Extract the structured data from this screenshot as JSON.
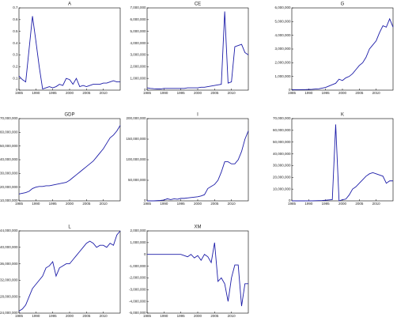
{
  "chart_data": [
    {
      "type": "line",
      "title": "A",
      "x": [
        1985,
        1986,
        1987,
        1988,
        1989,
        1990,
        1991,
        1992,
        1993,
        1994,
        1995,
        1996,
        1997,
        1998,
        1999,
        2000,
        2001,
        2002,
        2003,
        2004,
        2005,
        2006,
        2007,
        2008,
        2009,
        2010,
        2011,
        2012,
        2013,
        2014,
        2015
      ],
      "series": [
        {
          "color": "#1c1ca8",
          "values": [
            0.12,
            0.09,
            0.07,
            0.35,
            0.63,
            0.42,
            0.2,
            0.01,
            0.02,
            0.03,
            0.02,
            0.03,
            0.05,
            0.04,
            0.1,
            0.09,
            0.05,
            0.1,
            0.03,
            0.04,
            0.03,
            0.04,
            0.05,
            0.05,
            0.05,
            0.06,
            0.06,
            0.07,
            0.08,
            0.07,
            0.07
          ]
        }
      ],
      "xlim": [
        1985,
        2015
      ],
      "xticks": [
        1985,
        1990,
        1995,
        2000,
        2005,
        2010
      ],
      "ylim": [
        0,
        0.7
      ],
      "yticks": [
        0,
        0.1,
        0.2,
        0.3,
        0.4,
        0.5,
        0.6,
        0.7
      ]
    },
    {
      "type": "line",
      "title": "CE",
      "x": [
        1985,
        1986,
        1987,
        1988,
        1989,
        1990,
        1991,
        1992,
        1993,
        1994,
        1995,
        1996,
        1997,
        1998,
        1999,
        2000,
        2001,
        2002,
        2003,
        2004,
        2005,
        2006,
        2007,
        2008,
        2009,
        2010,
        2011,
        2012,
        2013,
        2014,
        2015
      ],
      "series": [
        {
          "color": "#1c1ca8",
          "values": [
            200000,
            150000,
            120000,
            100000,
            100000,
            150000,
            150000,
            150000,
            150000,
            150000,
            150000,
            150000,
            200000,
            200000,
            200000,
            200000,
            250000,
            250000,
            300000,
            350000,
            400000,
            450000,
            500000,
            6700000,
            600000,
            700000,
            3700000,
            3800000,
            3900000,
            3200000,
            3000000
          ]
        }
      ],
      "xlim": [
        1985,
        2015
      ],
      "xticks": [
        1985,
        1990,
        1995,
        2000,
        2005,
        2010
      ],
      "ylim": [
        0,
        7000000
      ],
      "yticks": [
        0,
        {
          "value": 1000000,
          "label": "1,000,000"
        },
        {
          "value": 2000000,
          "label": "2,000,000"
        },
        {
          "value": 3000000,
          "label": "3,000,000"
        },
        {
          "value": 4000000,
          "label": "4,000,000"
        },
        {
          "value": 5000000,
          "label": "5,000,000"
        },
        {
          "value": 6000000,
          "label": "6,000,000"
        },
        {
          "value": 7000000,
          "label": "7,000,000"
        }
      ]
    },
    {
      "type": "line",
      "title": "G",
      "x": [
        1985,
        1986,
        1987,
        1988,
        1989,
        1990,
        1991,
        1992,
        1993,
        1994,
        1995,
        1996,
        1997,
        1998,
        1999,
        2000,
        2001,
        2002,
        2003,
        2004,
        2005,
        2006,
        2007,
        2008,
        2009,
        2010,
        2011,
        2012,
        2013,
        2014,
        2015
      ],
      "series": [
        {
          "color": "#1c1ca8",
          "values": [
            30000,
            30000,
            30000,
            40000,
            40000,
            50000,
            60000,
            80000,
            100000,
            150000,
            200000,
            300000,
            400000,
            500000,
            800000,
            700000,
            900000,
            1000000,
            1200000,
            1500000,
            1800000,
            2000000,
            2400000,
            3000000,
            3300000,
            3600000,
            4200000,
            4700000,
            4600000,
            5200000,
            4600000
          ]
        }
      ],
      "xlim": [
        1985,
        2015
      ],
      "xticks": [
        1985,
        1990,
        1995,
        2000,
        2005,
        2010
      ],
      "ylim": [
        0,
        6000000
      ],
      "yticks": [
        0,
        {
          "value": 1000000,
          "label": "1,000,000"
        },
        {
          "value": 2000000,
          "label": "2,000,000"
        },
        {
          "value": 3000000,
          "label": "3,000,000"
        },
        {
          "value": 4000000,
          "label": "4,000,000"
        },
        {
          "value": 5000000,
          "label": "5,000,000"
        },
        {
          "value": 6000000,
          "label": "6,000,000"
        }
      ]
    },
    {
      "type": "line",
      "title": "GDP",
      "x": [
        1985,
        1986,
        1987,
        1988,
        1989,
        1990,
        1991,
        1992,
        1993,
        1994,
        1995,
        1996,
        1997,
        1998,
        1999,
        2000,
        2001,
        2002,
        2003,
        2004,
        2005,
        2006,
        2007,
        2008,
        2009,
        2010,
        2011,
        2012,
        2013,
        2014,
        2015
      ],
      "series": [
        {
          "color": "#1c1ca8",
          "values": [
            15000000,
            15500000,
            16000000,
            17000000,
            19000000,
            20000000,
            20500000,
            20500000,
            21000000,
            21000000,
            21500000,
            22000000,
            22500000,
            23000000,
            23500000,
            25000000,
            27000000,
            29000000,
            31000000,
            33000000,
            35000000,
            37000000,
            39000000,
            42000000,
            45000000,
            48000000,
            52000000,
            56000000,
            58000000,
            61000000,
            65000000
          ]
        }
      ],
      "xlim": [
        1985,
        2015
      ],
      "xticks": [
        1985,
        1990,
        1995,
        2000,
        2005,
        2010
      ],
      "ylim": [
        10000000,
        70000000
      ],
      "yticks": [
        {
          "value": 10000000,
          "label": "10,000,000"
        },
        {
          "value": 20000000,
          "label": "20,000,000"
        },
        {
          "value": 30000000,
          "label": "30,000,000"
        },
        {
          "value": 40000000,
          "label": "40,000,000"
        },
        {
          "value": 50000000,
          "label": "50,000,000"
        },
        {
          "value": 60000000,
          "label": "60,000,000"
        },
        {
          "value": 70000000,
          "label": "70,000,000"
        }
      ]
    },
    {
      "type": "line",
      "title": "I",
      "x": [
        1985,
        1986,
        1987,
        1988,
        1989,
        1990,
        1991,
        1992,
        1993,
        1994,
        1995,
        1996,
        1997,
        1998,
        1999,
        2000,
        2001,
        2002,
        2003,
        2004,
        2005,
        2006,
        2007,
        2008,
        2009,
        2010,
        2011,
        2012,
        2013,
        2014,
        2015
      ],
      "series": [
        {
          "color": "#1c1ca8",
          "values": [
            0,
            0,
            0,
            500000,
            1000000,
            2000000,
            5000000,
            3000000,
            5000000,
            4000000,
            6000000,
            6000000,
            7000000,
            8000000,
            9000000,
            10000000,
            12000000,
            15000000,
            30000000,
            35000000,
            40000000,
            50000000,
            70000000,
            95000000,
            95000000,
            90000000,
            90000000,
            100000000,
            120000000,
            150000000,
            170000000
          ]
        }
      ],
      "xlim": [
        1985,
        2015
      ],
      "xticks": [
        1985,
        1990,
        1995,
        2000,
        2005,
        2010
      ],
      "ylim": [
        0,
        200000000
      ],
      "yticks": [
        0,
        {
          "value": 50000000,
          "label": "50,000,000"
        },
        {
          "value": 100000000,
          "label": "100,000,000"
        },
        {
          "value": 150000000,
          "label": "150,000,000"
        },
        {
          "value": 200000000,
          "label": "200,000,000"
        }
      ]
    },
    {
      "type": "line",
      "title": "K",
      "x": [
        1985,
        1986,
        1987,
        1988,
        1989,
        1990,
        1991,
        1992,
        1993,
        1994,
        1995,
        1996,
        1997,
        1998,
        1999,
        2000,
        2001,
        2002,
        2003,
        2004,
        2005,
        2006,
        2007,
        2008,
        2009,
        2010,
        2011,
        2012,
        2013,
        2014,
        2015
      ],
      "series": [
        {
          "color": "#1c1ca8",
          "values": [
            0,
            0,
            0,
            0,
            0,
            0,
            0,
            100000,
            200000,
            300000,
            500000,
            800000,
            1000000,
            65000000,
            0,
            1000000,
            1500000,
            5000000,
            10000000,
            12000000,
            15000000,
            18000000,
            21000000,
            23000000,
            24000000,
            23000000,
            22000000,
            21000000,
            15000000,
            17000000,
            17000000
          ]
        }
      ],
      "xlim": [
        1985,
        2015
      ],
      "xticks": [
        1985,
        1990,
        1995,
        2000,
        2005,
        2010
      ],
      "ylim": [
        0,
        70000000
      ],
      "yticks": [
        0,
        {
          "value": 10000000,
          "label": "10,000,000"
        },
        {
          "value": 20000000,
          "label": "20,000,000"
        },
        {
          "value": 30000000,
          "label": "30,000,000"
        },
        {
          "value": 40000000,
          "label": "40,000,000"
        },
        {
          "value": 50000000,
          "label": "50,000,000"
        },
        {
          "value": 60000000,
          "label": "60,000,000"
        },
        {
          "value": 70000000,
          "label": "70,000,000"
        }
      ]
    },
    {
      "type": "line",
      "title": "L",
      "x": [
        1985,
        1986,
        1987,
        1988,
        1989,
        1990,
        1991,
        1992,
        1993,
        1994,
        1995,
        1996,
        1997,
        1998,
        1999,
        2000,
        2001,
        2002,
        2003,
        2004,
        2005,
        2006,
        2007,
        2008,
        2009,
        2010,
        2011,
        2012,
        2013,
        2014,
        2015
      ],
      "series": [
        {
          "color": "#1c1ca8",
          "values": [
            24500000,
            25000000,
            26000000,
            28000000,
            30000000,
            31000000,
            32000000,
            33000000,
            35000000,
            35500000,
            36500000,
            33000000,
            35000000,
            35500000,
            36000000,
            36000000,
            37000000,
            38000000,
            39000000,
            40000000,
            41000000,
            41500000,
            41000000,
            40000000,
            40500000,
            40500000,
            40000000,
            41000000,
            40500000,
            43000000,
            44000000
          ]
        }
      ],
      "xlim": [
        1985,
        2015
      ],
      "xticks": [
        1985,
        1990,
        1995,
        2000,
        2005,
        2010
      ],
      "ylim": [
        24000000,
        44000000
      ],
      "yticks": [
        {
          "value": 24000000,
          "label": "24,000,000"
        },
        {
          "value": 28000000,
          "label": "28,000,000"
        },
        {
          "value": 32000000,
          "label": "32,000,000"
        },
        {
          "value": 36000000,
          "label": "36,000,000"
        },
        {
          "value": 40000000,
          "label": "40,000,000"
        },
        {
          "value": 44000000,
          "label": "44,000,000"
        }
      ]
    },
    {
      "type": "line",
      "title": "XM",
      "x": [
        1985,
        1986,
        1987,
        1988,
        1989,
        1990,
        1991,
        1992,
        1993,
        1994,
        1995,
        1996,
        1997,
        1998,
        1999,
        2000,
        2001,
        2002,
        2003,
        2004,
        2005,
        2006,
        2007,
        2008,
        2009,
        2010,
        2011,
        2012,
        2013,
        2014,
        2015
      ],
      "series": [
        {
          "color": "#1c1ca8",
          "values": [
            0,
            0,
            0,
            0,
            0,
            0,
            0,
            0,
            0,
            0,
            0,
            -100000,
            -200000,
            0,
            -300000,
            -100000,
            -500000,
            0,
            -200000,
            -700000,
            1000000,
            -2300000,
            -2000000,
            -2500000,
            -4000000,
            -2000000,
            -900000,
            -900000,
            -4400000,
            -2500000,
            -2500000
          ]
        }
      ],
      "xlim": [
        1985,
        2015
      ],
      "xticks": [
        1985,
        1990,
        1995,
        2000,
        2005,
        2010
      ],
      "ylim": [
        -5000000,
        2000000
      ],
      "yticks": [
        {
          "value": -5000000,
          "label": "-5,000,000"
        },
        {
          "value": -4000000,
          "label": "-4,000,000"
        },
        {
          "value": -3000000,
          "label": "-3,000,000"
        },
        {
          "value": -2000000,
          "label": "-2,000,000"
        },
        {
          "value": -1000000,
          "label": "-1,000,000"
        },
        0,
        {
          "value": 1000000,
          "label": "1,000,000"
        },
        {
          "value": 2000000,
          "label": "2,000,000"
        }
      ]
    }
  ]
}
